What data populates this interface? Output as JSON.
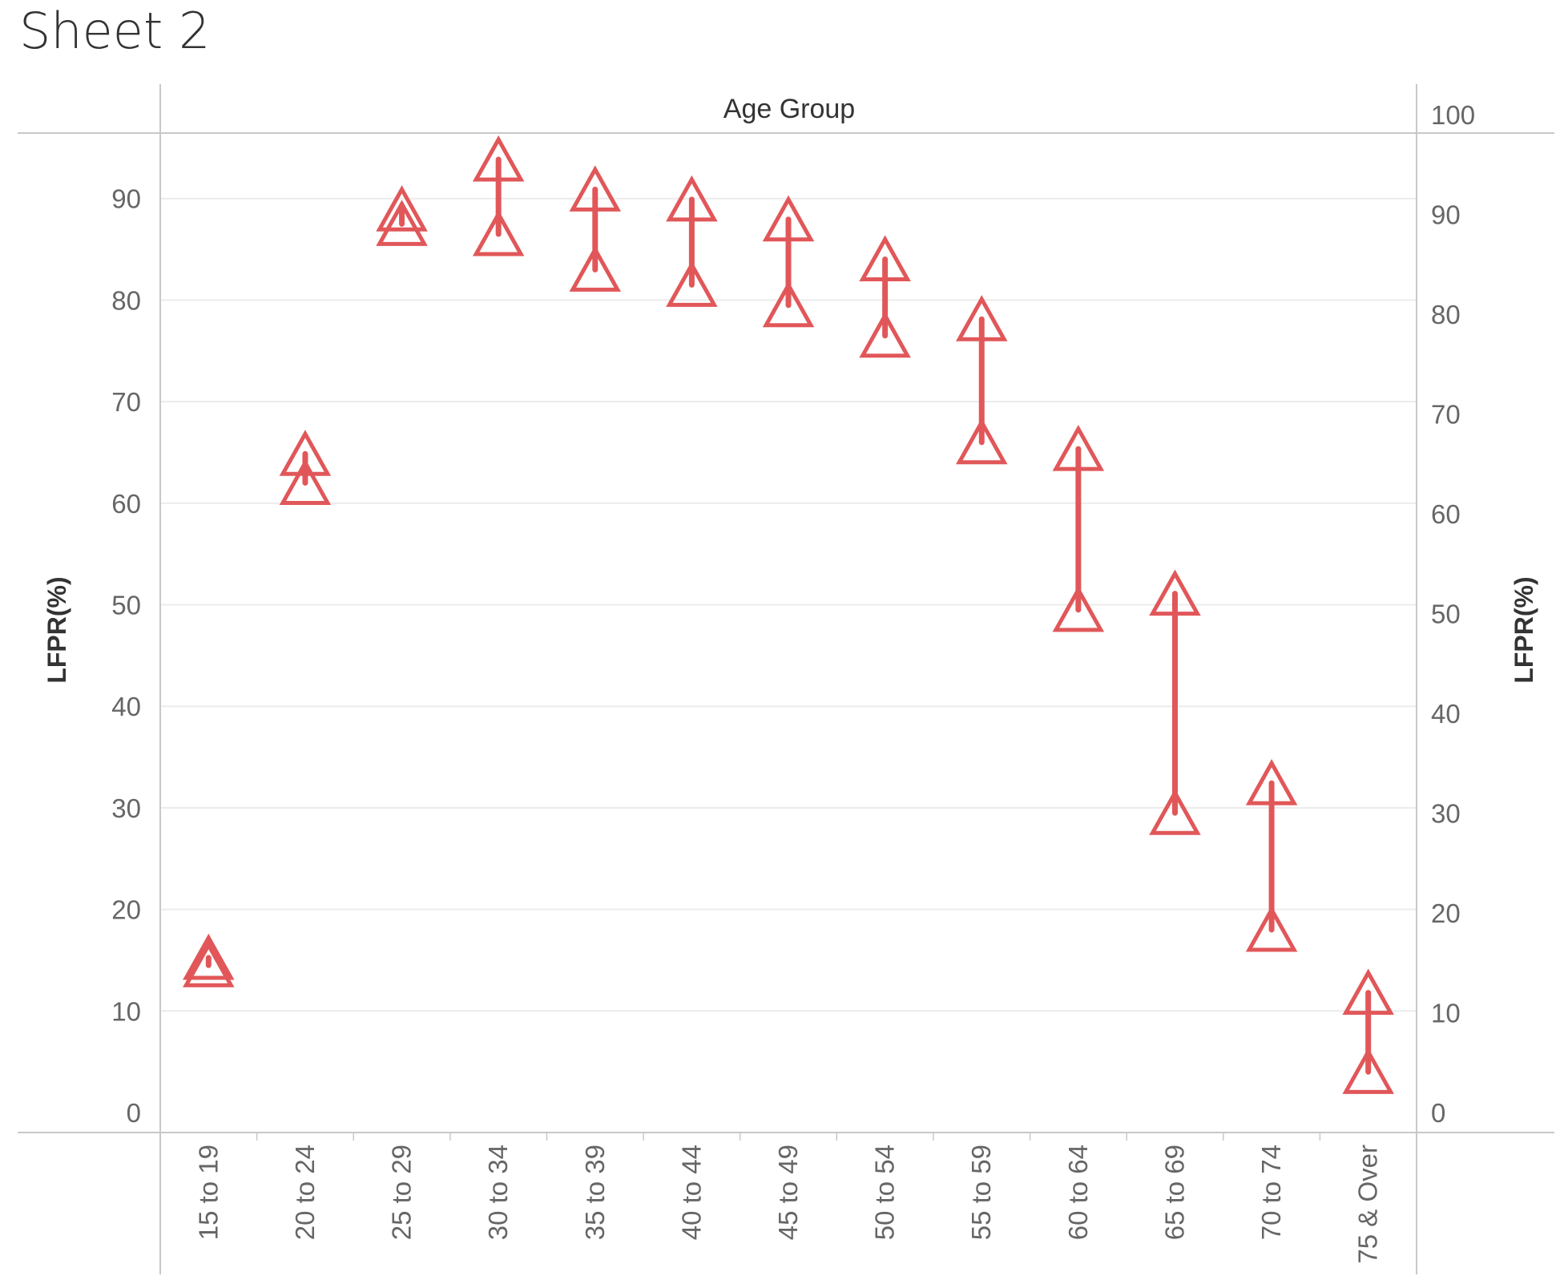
{
  "sheet": {
    "title": "Sheet 2"
  },
  "colors": {
    "increase": "#E15759",
    "decrease": "#4E79A7",
    "grid": "#ececec",
    "axis_line": "#c8c8c8",
    "tick_text": "#666666",
    "label_text": "#333333"
  },
  "chart_data": {
    "type": "scatter",
    "title": "",
    "column_header": "Age Group",
    "ylabel_left": "LFPR(%)",
    "ylabel_right": "LFPR(%)",
    "ylim_left": [
      0,
      96
    ],
    "ylim_right": [
      0,
      104
    ],
    "yticks_left": [
      0,
      10,
      20,
      30,
      40,
      50,
      60,
      70,
      80,
      90
    ],
    "yticks_right": [
      0,
      10,
      20,
      30,
      40,
      50,
      60,
      70,
      80,
      90,
      100
    ],
    "grid": true,
    "categories": [
      "15 to 19",
      "20 to 24",
      "25 to 29",
      "30 to 34",
      "35 to 39",
      "40 to 44",
      "45 to 49",
      "50 to 54",
      "55 to 59",
      "60 to 64",
      "65 to 69",
      "70 to 74",
      "75 & Over"
    ],
    "series": [
      {
        "axis": "left",
        "values": [
          14.5,
          62.0,
          87.5,
          86.5,
          83.0,
          81.5,
          79.5,
          76.5,
          66.0,
          49.5,
          29.5,
          18.0,
          4.0
        ]
      },
      {
        "axis": "right",
        "values": [
          15.5,
          66.0,
          90.5,
          95.5,
          92.5,
          91.5,
          89.5,
          85.5,
          79.5,
          66.5,
          52.0,
          33.0,
          12.0
        ]
      }
    ]
  }
}
